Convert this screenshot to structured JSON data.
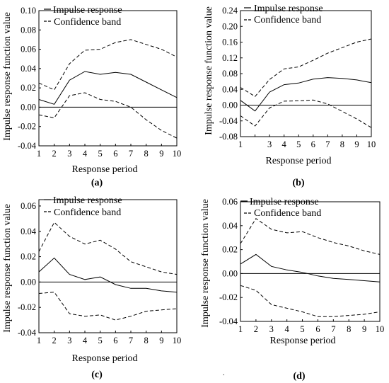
{
  "chart_data": [
    {
      "type": "line",
      "caption": "(a)",
      "xlabel": "Response period",
      "ylabel": "Impulse response function value",
      "x": [
        1,
        2,
        3,
        4,
        5,
        6,
        7,
        8,
        9,
        10
      ],
      "xticks": [
        "1",
        "2",
        "3",
        "4",
        "5",
        "6",
        "7",
        "8",
        "9",
        "10"
      ],
      "ylim": [
        -0.04,
        0.1
      ],
      "yticks": [
        "0.10",
        "0.08",
        "0.06",
        "0.04",
        "0.02",
        "0.00",
        "-0.02",
        "-0.04"
      ],
      "ytick_values": [
        0.1,
        0.08,
        0.06,
        0.04,
        0.02,
        0.0,
        -0.02,
        -0.04
      ],
      "legend": [
        {
          "name": "Impulse response",
          "style": "solid"
        },
        {
          "name": "Confidence band",
          "style": "dashed"
        }
      ],
      "series": [
        {
          "name": "Impulse response",
          "style": "solid",
          "values": [
            0.008,
            0.003,
            0.028,
            0.037,
            0.034,
            0.036,
            0.034,
            0.026,
            0.018,
            0.01
          ]
        },
        {
          "name": "Confidence band",
          "style": "dashed",
          "values": [
            0.025,
            0.018,
            0.045,
            0.059,
            0.06,
            0.067,
            0.07,
            0.065,
            0.06,
            0.052
          ]
        },
        {
          "name": "Confidence band",
          "style": "dashed",
          "values": [
            -0.008,
            -0.011,
            0.012,
            0.015,
            0.008,
            0.006,
            0.0,
            -0.013,
            -0.024,
            -0.032
          ]
        }
      ],
      "zero_line": true,
      "grid": false
    },
    {
      "type": "line",
      "caption": "(b)",
      "xlabel": "Response period",
      "ylabel": "Impulse response function value",
      "x": [
        1,
        2,
        3,
        4,
        5,
        6,
        7,
        8,
        9,
        10
      ],
      "xticks": [
        "1",
        "",
        "3",
        "4",
        "5",
        "6",
        "7",
        "8",
        "9",
        "10"
      ],
      "ylim": [
        -0.08,
        0.24
      ],
      "yticks": [
        "0.24",
        "0.20",
        "0.16",
        "0.12",
        "0.08",
        "0.04",
        "0.00",
        "-0.04",
        "-0.08"
      ],
      "ytick_values": [
        0.24,
        0.2,
        0.16,
        0.12,
        0.08,
        0.04,
        0.0,
        -0.04,
        -0.08
      ],
      "legend": [
        {
          "name": "Impulse response",
          "style": "solid"
        },
        {
          "name": "Confidence band",
          "style": "dashed"
        }
      ],
      "series": [
        {
          "name": "Impulse response",
          "style": "solid",
          "values": [
            0.012,
            -0.015,
            0.033,
            0.052,
            0.056,
            0.066,
            0.07,
            0.068,
            0.064,
            0.057
          ]
        },
        {
          "name": "Confidence band",
          "style": "dashed",
          "values": [
            0.045,
            0.022,
            0.065,
            0.092,
            0.097,
            0.114,
            0.132,
            0.146,
            0.16,
            0.168
          ]
        },
        {
          "name": "Confidence band",
          "style": "dashed",
          "values": [
            -0.027,
            -0.053,
            -0.007,
            0.01,
            0.011,
            0.013,
            0.003,
            -0.016,
            -0.035,
            -0.057
          ]
        }
      ],
      "zero_line": true,
      "grid": false
    },
    {
      "type": "line",
      "caption": "(c)",
      "xlabel": "Response period",
      "ylabel": "Impulse response function value",
      "x": [
        1,
        2,
        3,
        4,
        5,
        6,
        7,
        8,
        9,
        10
      ],
      "xticks": [
        "1",
        "2",
        "3",
        "4",
        "5",
        "6",
        "7",
        "8",
        "9",
        "10"
      ],
      "ylim": [
        -0.04,
        0.065
      ],
      "yticks": [
        "0.06",
        "0.04",
        "0.02",
        "0.00",
        "-0.02",
        "-0.04"
      ],
      "ytick_values": [
        0.06,
        0.04,
        0.02,
        0.0,
        -0.02,
        -0.04
      ],
      "legend": [
        {
          "name": "Impulse response",
          "style": "solid"
        },
        {
          "name": "Confidence band",
          "style": "dashed"
        }
      ],
      "series": [
        {
          "name": "Impulse response",
          "style": "solid",
          "values": [
            0.008,
            0.019,
            0.006,
            0.002,
            0.004,
            -0.002,
            -0.005,
            -0.005,
            -0.007,
            -0.008
          ]
        },
        {
          "name": "Confidence band",
          "style": "dashed",
          "values": [
            0.024,
            0.047,
            0.036,
            0.03,
            0.033,
            0.026,
            0.016,
            0.012,
            0.008,
            0.006
          ]
        },
        {
          "name": "Confidence band",
          "style": "dashed",
          "values": [
            -0.009,
            -0.008,
            -0.025,
            -0.027,
            -0.026,
            -0.03,
            -0.027,
            -0.023,
            -0.022,
            -0.021
          ]
        }
      ],
      "zero_line": true,
      "grid": false
    },
    {
      "type": "line",
      "caption": "(d)",
      "xlabel": "Response period",
      "ylabel": "Impulse response function value",
      "x": [
        1,
        2,
        3,
        4,
        5,
        6,
        7,
        8,
        9,
        10
      ],
      "xticks": [
        "1",
        "2",
        "3",
        "4",
        "5",
        "6",
        "7",
        "8",
        "9",
        "10"
      ],
      "ylim": [
        -0.04,
        0.06
      ],
      "yticks": [
        "0.06",
        "0.04",
        "0.02",
        "0.00",
        "-0.02",
        "-0.04"
      ],
      "ytick_values": [
        0.06,
        0.04,
        0.02,
        0.0,
        -0.02,
        -0.04
      ],
      "legend": [
        {
          "name": "Impulse response",
          "style": "solid"
        },
        {
          "name": "Confidence band",
          "style": "dashed"
        }
      ],
      "series": [
        {
          "name": "Impulse response",
          "style": "solid",
          "values": [
            0.008,
            0.016,
            0.006,
            0.003,
            0.001,
            -0.002,
            -0.004,
            -0.005,
            -0.006,
            -0.007
          ]
        },
        {
          "name": "Confidence band",
          "style": "dashed",
          "values": [
            0.025,
            0.046,
            0.037,
            0.034,
            0.035,
            0.03,
            0.026,
            0.023,
            0.019,
            0.016
          ]
        },
        {
          "name": "Confidence band",
          "style": "dashed",
          "values": [
            -0.01,
            -0.014,
            -0.026,
            -0.029,
            -0.032,
            -0.036,
            -0.036,
            -0.035,
            -0.034,
            -0.032
          ]
        }
      ],
      "zero_line": true,
      "grid": false
    }
  ],
  "footer_mark": "."
}
